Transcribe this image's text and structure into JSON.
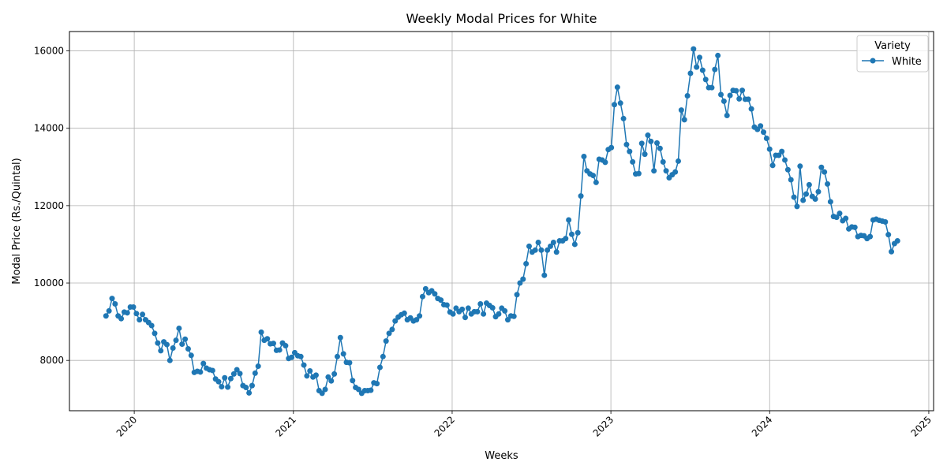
{
  "chart_data": {
    "type": "line",
    "title": "Weekly Modal Prices for White",
    "xlabel": "Weeks",
    "ylabel": "Modal Price (Rs./Quintal)",
    "x_axis_type": "date",
    "xlim": [
      "2019-08-05",
      "2025-01-12"
    ],
    "ylim": [
      6700,
      16500
    ],
    "xticks": [
      "2020-01-01",
      "2021-01-01",
      "2022-01-01",
      "2023-01-01",
      "2024-01-01",
      "2025-01-01"
    ],
    "xtick_labels": [
      "2020",
      "2021",
      "2022",
      "2023",
      "2024",
      "2025"
    ],
    "yticks": [
      8000,
      10000,
      12000,
      14000,
      16000
    ],
    "ytick_labels": [
      "8000",
      "10000",
      "12000",
      "14000",
      "16000"
    ],
    "xtick_rotation_deg": 45,
    "grid": true,
    "legend": {
      "title": "Variety",
      "position": "top-right"
    },
    "color": "#1f77b4",
    "series": [
      {
        "name": "White",
        "start": "2019-10-28",
        "interval_days": 7,
        "values": [
          9150,
          9280,
          9600,
          9460,
          9150,
          9080,
          9250,
          9230,
          9380,
          9380,
          9210,
          9050,
          9190,
          9050,
          8980,
          8900,
          8700,
          8450,
          8250,
          8480,
          8410,
          8000,
          8320,
          8520,
          8830,
          8420,
          8550,
          8300,
          8130,
          7690,
          7720,
          7700,
          7920,
          7800,
          7760,
          7740,
          7520,
          7450,
          7320,
          7550,
          7310,
          7530,
          7650,
          7760,
          7660,
          7350,
          7300,
          7160,
          7350,
          7670,
          7850,
          8730,
          8520,
          8560,
          8430,
          8440,
          8260,
          8270,
          8450,
          8380,
          8050,
          8080,
          8200,
          8120,
          8100,
          7880,
          7600,
          7730,
          7570,
          7620,
          7220,
          7150,
          7250,
          7570,
          7470,
          7650,
          8100,
          8590,
          8170,
          7950,
          7940,
          7480,
          7300,
          7250,
          7150,
          7220,
          7220,
          7230,
          7420,
          7400,
          7820,
          8100,
          8500,
          8700,
          8800,
          9020,
          9120,
          9180,
          9220,
          9050,
          9100,
          9020,
          9050,
          9150,
          9650,
          9850,
          9750,
          9800,
          9720,
          9600,
          9560,
          9440,
          9430,
          9250,
          9200,
          9350,
          9260,
          9320,
          9110,
          9350,
          9200,
          9260,
          9260,
          9460,
          9200,
          9480,
          9420,
          9360,
          9130,
          9200,
          9350,
          9280,
          9050,
          9150,
          9140,
          9700,
          10000,
          10100,
          10500,
          10950,
          10800,
          10850,
          11050,
          10850,
          10200,
          10850,
          10950,
          11050,
          10800,
          11090,
          11090,
          11150,
          11630,
          11260,
          11000,
          11300,
          12250,
          13270,
          12900,
          12820,
          12780,
          12600,
          13200,
          13180,
          13120,
          13450,
          13500,
          14610,
          15060,
          14650,
          14250,
          13580,
          13400,
          13130,
          12820,
          12830,
          13610,
          13330,
          13820,
          13660,
          12900,
          13620,
          13480,
          13130,
          12900,
          12720,
          12800,
          12870,
          13150,
          14470,
          14220,
          14840,
          15420,
          16050,
          15580,
          15830,
          15500,
          15260,
          15050,
          15050,
          15520,
          15880,
          14870,
          14700,
          14330,
          14850,
          14980,
          14970,
          14760,
          14980,
          14750,
          14750,
          14500,
          14030,
          13970,
          14060,
          13900,
          13740,
          13460,
          13040,
          13300,
          13300,
          13400,
          13180,
          12930,
          12670,
          12220,
          11980,
          13020,
          12140,
          12300,
          12540,
          12240,
          12170,
          12360,
          12990,
          12870,
          12560,
          12100,
          11720,
          11700,
          11800,
          11610,
          11670,
          11400,
          11450,
          11440,
          11200,
          11230,
          11220,
          11150,
          11200,
          11630,
          11650,
          11620,
          11600,
          11580,
          11250,
          10810,
          11020,
          11090
        ]
      }
    ]
  }
}
